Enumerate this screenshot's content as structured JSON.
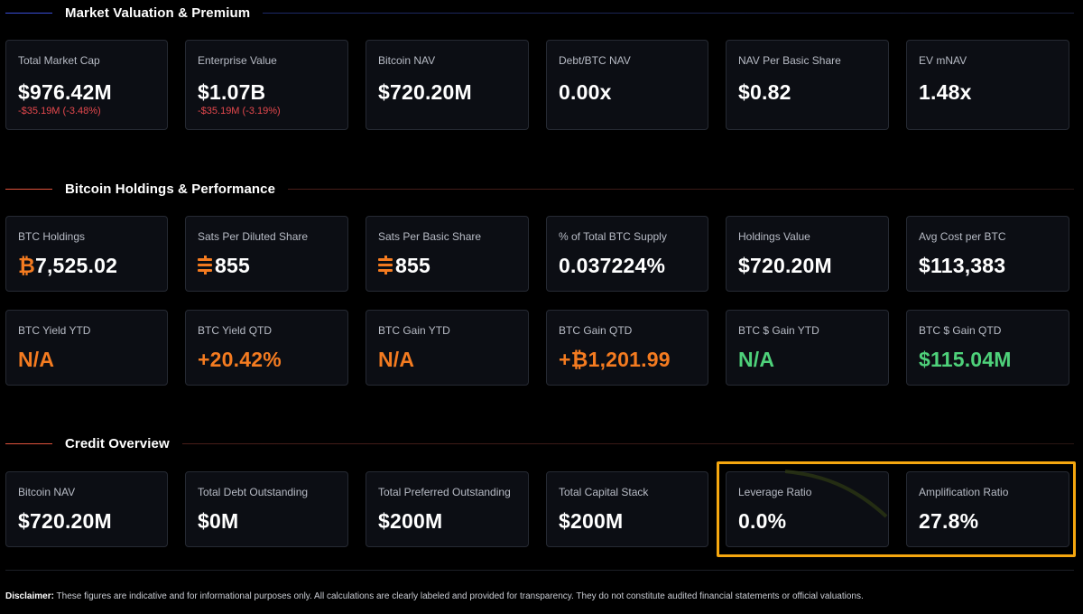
{
  "colors": {
    "accent_blue": "#3b4fd8",
    "accent_red": "#e0533d",
    "card_bg": "#0c0e14",
    "card_border": "#262a33",
    "orange": "#f47b20",
    "green": "#4ed17a",
    "negative": "#e5484d",
    "highlight": "#f5a70f"
  },
  "sections": {
    "valuation": {
      "title": "Market Valuation & Premium",
      "cards": [
        {
          "label": "Total Market Cap",
          "value": "$976.42M",
          "delta": "-$35.19M (-3.48%)"
        },
        {
          "label": "Enterprise Value",
          "value": "$1.07B",
          "delta": "-$35.19M (-3.19%)"
        },
        {
          "label": "Bitcoin NAV",
          "value": "$720.20M"
        },
        {
          "label": "Debt/BTC NAV",
          "value": "0.00x"
        },
        {
          "label": "NAV Per Basic Share",
          "value": "$0.82"
        },
        {
          "label": "EV mNAV",
          "value": "1.48x"
        }
      ]
    },
    "holdings": {
      "title": "Bitcoin Holdings & Performance",
      "cards": [
        {
          "label": "BTC Holdings",
          "currency": "₿",
          "value": "7,525.02"
        },
        {
          "label": "Sats Per Diluted Share",
          "value": "855",
          "icon": "sats-icon"
        },
        {
          "label": "Sats Per Basic Share",
          "value": "855",
          "icon": "sats-icon"
        },
        {
          "label": "% of Total BTC Supply",
          "value": "0.037224%"
        },
        {
          "label": "Holdings Value",
          "value": "$720.20M"
        },
        {
          "label": "Avg Cost per BTC",
          "value": "$113,383"
        }
      ],
      "cards_row2": [
        {
          "label": "BTC Yield YTD",
          "value": "N/A",
          "tone": "orange"
        },
        {
          "label": "BTC Yield QTD",
          "value": "+20.42%",
          "tone": "orange"
        },
        {
          "label": "BTC Gain YTD",
          "value": "N/A",
          "tone": "orange"
        },
        {
          "label": "BTC Gain QTD",
          "value": "+₿1,201.99",
          "tone": "orange"
        },
        {
          "label": "BTC $ Gain YTD",
          "value": "N/A",
          "tone": "green"
        },
        {
          "label": "BTC $ Gain QTD",
          "value": "$115.04M",
          "tone": "green"
        }
      ]
    },
    "credit": {
      "title": "Credit Overview",
      "cards": [
        {
          "label": "Bitcoin NAV",
          "value": "$720.20M"
        },
        {
          "label": "Total Debt Outstanding",
          "value": "$0M"
        },
        {
          "label": "Total Preferred Outstanding",
          "value": "$200M"
        },
        {
          "label": "Total Capital Stack",
          "value": "$200M"
        },
        {
          "label": "Leverage Ratio",
          "value": "0.0%"
        },
        {
          "label": "Amplification Ratio",
          "value": "27.8%"
        }
      ]
    }
  },
  "disclaimer": {
    "lead": "Disclaimer:",
    "text": "These figures are indicative and for informational purposes only. All calculations are clearly labeled and provided for transparency. They do not constitute audited financial statements or official valuations."
  }
}
